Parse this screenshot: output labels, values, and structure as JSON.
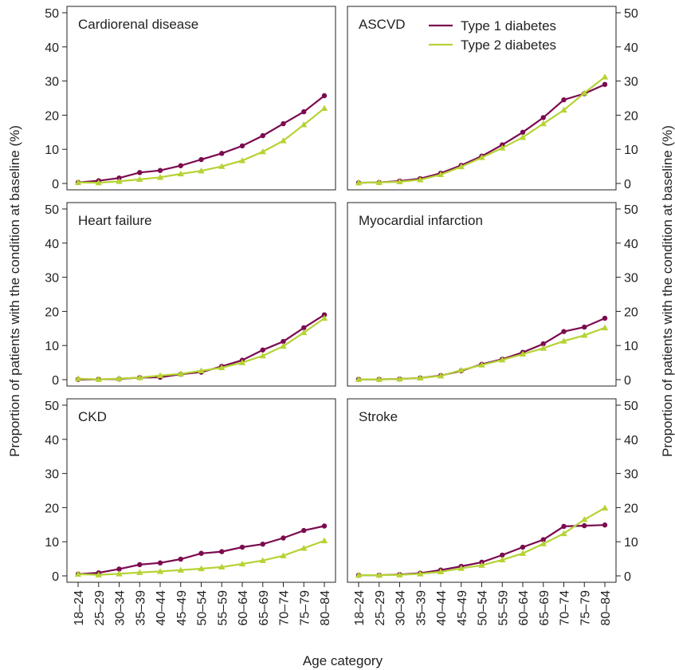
{
  "chart_data": {
    "type": "line",
    "xlabel": "Age category",
    "ylabel": "Proportion of patients with the condition at baseline (%)",
    "x": [
      "18–24",
      "25–29",
      "30–34",
      "35–39",
      "40–44",
      "45–49",
      "50–54",
      "55–59",
      "60–64",
      "65–69",
      "70–74",
      "75–79",
      "80–84"
    ],
    "ylim": [
      0,
      50
    ],
    "yticks": [
      "0",
      "10",
      "20",
      "30",
      "40",
      "50"
    ],
    "legend": {
      "placement": "top-right of ASCVD panel",
      "entries": [
        {
          "name": "Type 1 diabetes",
          "color": "#7b0a4f",
          "marker": "circle"
        },
        {
          "name": "Type 2 diabetes",
          "color": "#b5d334",
          "marker": "triangle"
        }
      ]
    },
    "panels": [
      {
        "title": "Cardiorenal disease",
        "series": [
          {
            "name": "Type 1 diabetes",
            "values": [
              0.3,
              0.8,
              1.6,
              3.2,
              3.8,
              5.2,
              7.0,
              8.8,
              11.0,
              14.0,
              17.5,
              21.0,
              25.7
            ]
          },
          {
            "name": "Type 2 diabetes",
            "values": [
              0.3,
              0.2,
              0.6,
              1.2,
              1.8,
              2.8,
              3.7,
              5.0,
              6.7,
              9.3,
              12.5,
              17.2,
              22.0
            ]
          }
        ]
      },
      {
        "title": "ASCVD",
        "series": [
          {
            "name": "Type 1 diabetes",
            "values": [
              0.2,
              0.3,
              0.7,
              1.4,
              3.0,
              5.3,
              8.0,
              11.3,
              15.0,
              19.3,
              24.5,
              26.3,
              29.0
            ]
          },
          {
            "name": "Type 2 diabetes",
            "values": [
              0.2,
              0.3,
              0.5,
              1.1,
              2.6,
              4.9,
              7.6,
              10.4,
              13.5,
              17.5,
              21.5,
              26.5,
              31.2
            ]
          }
        ]
      },
      {
        "title": "Heart failure",
        "series": [
          {
            "name": "Type 1 diabetes",
            "values": [
              0.1,
              0.1,
              0.2,
              0.6,
              0.7,
              1.6,
              2.2,
              3.9,
              5.7,
              8.7,
              11.2,
              15.2,
              19.0
            ]
          },
          {
            "name": "Type 2 diabetes",
            "values": [
              0.3,
              0.1,
              0.3,
              0.6,
              1.2,
              1.7,
              2.6,
              3.5,
              5.0,
              7.0,
              9.8,
              13.8,
              18.0
            ]
          }
        ]
      },
      {
        "title": "Myocardial infarction",
        "series": [
          {
            "name": "Type 1 diabetes",
            "values": [
              0.1,
              0.1,
              0.2,
              0.5,
              1.2,
              2.6,
              4.5,
              6.0,
              8.0,
              10.5,
              14.1,
              15.4,
              18.0
            ]
          },
          {
            "name": "Type 2 diabetes",
            "values": [
              0.1,
              0.1,
              0.2,
              0.5,
              1.1,
              2.8,
              4.3,
              5.8,
              7.5,
              9.2,
              11.3,
              13.0,
              15.2
            ]
          }
        ]
      },
      {
        "title": "CKD",
        "series": [
          {
            "name": "Type 1 diabetes",
            "values": [
              0.5,
              0.9,
              2.0,
              3.3,
              3.8,
              4.9,
              6.6,
              7.1,
              8.4,
              9.3,
              11.1,
              13.3,
              14.6
            ]
          },
          {
            "name": "Type 2 diabetes",
            "values": [
              0.5,
              0.3,
              0.6,
              1.0,
              1.3,
              1.7,
              2.1,
              2.6,
              3.5,
              4.5,
              5.9,
              8.1,
              10.3
            ]
          }
        ]
      },
      {
        "title": "Stroke",
        "series": [
          {
            "name": "Type 1 diabetes",
            "values": [
              0.2,
              0.2,
              0.4,
              0.8,
              1.7,
              2.8,
              4.0,
              6.1,
              8.4,
              10.6,
              14.5,
              14.7,
              14.9
            ]
          },
          {
            "name": "Type 2 diabetes",
            "values": [
              0.2,
              0.2,
              0.3,
              0.6,
              1.2,
              2.2,
              3.1,
              4.7,
              6.6,
              9.4,
              12.4,
              16.5,
              19.9
            ]
          }
        ]
      }
    ]
  }
}
